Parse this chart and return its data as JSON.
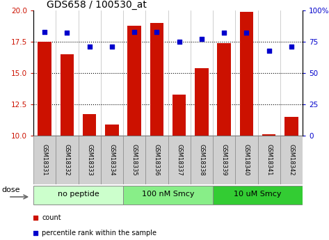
{
  "title": "GDS658 / 100530_at",
  "samples": [
    "GSM18331",
    "GSM18332",
    "GSM18333",
    "GSM18334",
    "GSM18335",
    "GSM18336",
    "GSM18337",
    "GSM18338",
    "GSM18339",
    "GSM18340",
    "GSM18341",
    "GSM18342"
  ],
  "counts": [
    17.5,
    16.5,
    11.7,
    10.9,
    18.8,
    19.0,
    13.3,
    15.4,
    17.4,
    19.9,
    10.1,
    11.5
  ],
  "percentiles": [
    83,
    82,
    71,
    71,
    83,
    83,
    75,
    77,
    82,
    82,
    68,
    71
  ],
  "bar_color": "#cc1100",
  "dot_color": "#0000cc",
  "ylim_left": [
    10,
    20
  ],
  "ylim_right": [
    0,
    100
  ],
  "yticks_left": [
    10,
    12.5,
    15,
    17.5,
    20
  ],
  "yticks_right": [
    0,
    25,
    50,
    75,
    100
  ],
  "ytick_labels_right": [
    "0",
    "25",
    "50",
    "75",
    "100%"
  ],
  "hlines": [
    12.5,
    15.0,
    17.5
  ],
  "groups": [
    {
      "label": "no peptide",
      "start": 0,
      "end": 4,
      "color": "#ccffcc"
    },
    {
      "label": "100 nM Smcy",
      "start": 4,
      "end": 8,
      "color": "#88ee88"
    },
    {
      "label": "10 uM Smcy",
      "start": 8,
      "end": 12,
      "color": "#33cc33"
    }
  ],
  "dose_label": "dose",
  "legend_count": "count",
  "legend_pct": "percentile rank within the sample",
  "bg_color": "#ffffff",
  "plot_bg": "#ffffff",
  "title_fontsize": 10,
  "tick_fontsize": 7.5,
  "sample_fontsize": 6,
  "group_fontsize": 8,
  "legend_fontsize": 7
}
